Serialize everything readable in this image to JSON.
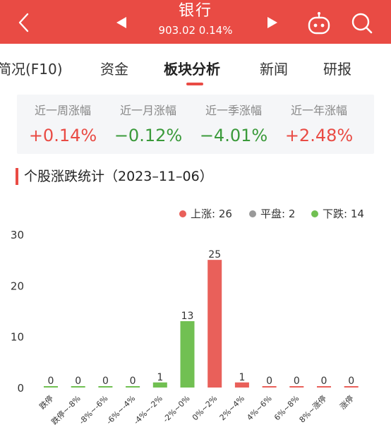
{
  "header": {
    "title": "银行",
    "subtitle": "903.02 0.14%",
    "icons": [
      "back-icon",
      "prev-icon",
      "next-icon",
      "robot-icon",
      "search-icon"
    ]
  },
  "tabs": [
    {
      "label": "简况(F10)"
    },
    {
      "label": "资金"
    },
    {
      "label": "板块分析"
    },
    {
      "label": "新闻"
    },
    {
      "label": "研报"
    }
  ],
  "summary": [
    {
      "label": "近一周涨幅",
      "value": "+0.14%",
      "color": "#e94b44"
    },
    {
      "label": "近一月涨幅",
      "value": "−0.12%",
      "color": "#3a9a3a"
    },
    {
      "label": "近一季涨幅",
      "value": "−4.01%",
      "color": "#3a9a3a"
    },
    {
      "label": "近一年涨幅",
      "value": "+2.48%",
      "color": "#e94b44"
    }
  ],
  "section": {
    "title": "个股涨跌统计（2023–11–06）"
  },
  "legend": [
    {
      "label": "上涨: 26",
      "color": "#e9605a"
    },
    {
      "label": "平盘: 2",
      "color": "#999999"
    },
    {
      "label": "下跌: 14",
      "color": "#71c052"
    }
  ],
  "chart_data": {
    "type": "bar",
    "categories": [
      "跌停",
      "跌停~-8%",
      "-8%~-6%",
      "-6%~-4%",
      "-4%~-2%",
      "-2%~0%",
      "0%~2%",
      "2%~4%",
      "4%~6%",
      "6%~8%",
      "8%~涨停",
      "涨停"
    ],
    "values": [
      0,
      0,
      0,
      0,
      1,
      13,
      25,
      1,
      0,
      0,
      0,
      0
    ],
    "colors": [
      "#71c052",
      "#71c052",
      "#71c052",
      "#71c052",
      "#71c052",
      "#71c052",
      "#e9605a",
      "#e9605a",
      "#e9605a",
      "#e9605a",
      "#e9605a",
      "#e9605a"
    ],
    "yticks": [
      0,
      10,
      20,
      30
    ],
    "ylim": [
      0,
      30
    ],
    "grid": false
  }
}
